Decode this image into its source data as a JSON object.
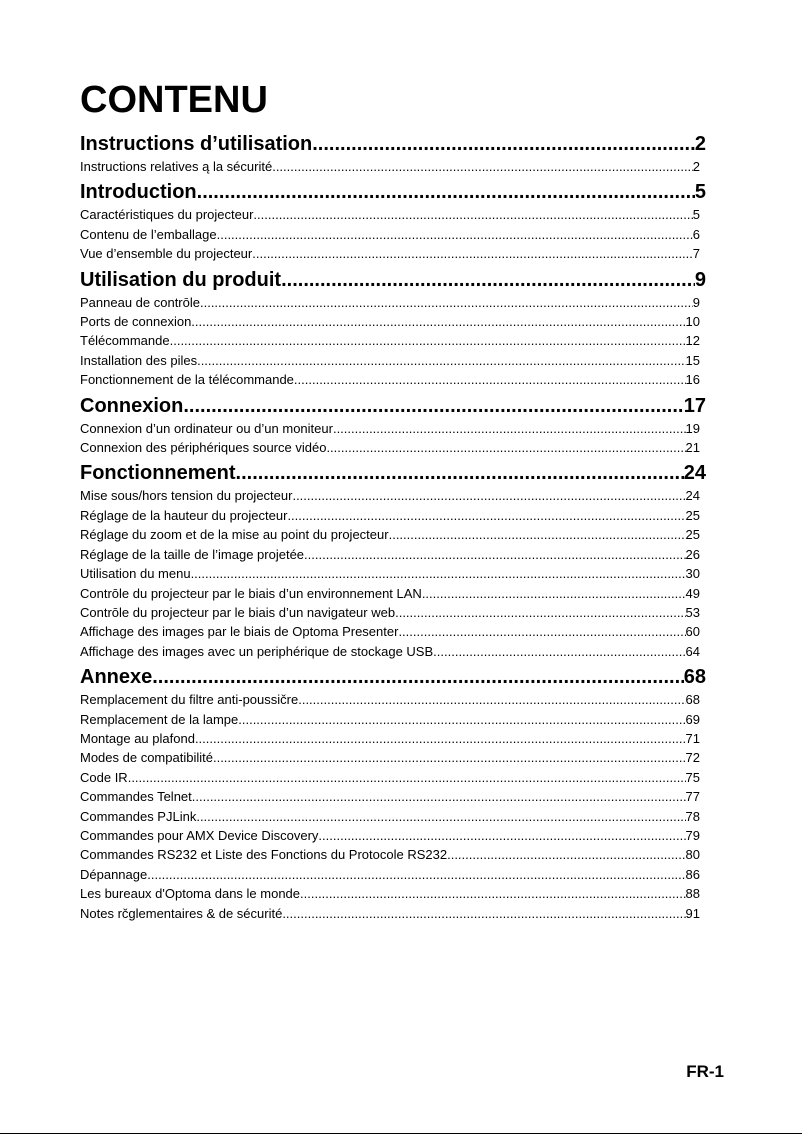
{
  "title": "CONTENU",
  "sections": [
    {
      "title": "Instructions d’utilisation",
      "page": "2",
      "entries": [
        {
          "label": "Instructions relatives ą la sécurité",
          "page": "2"
        }
      ]
    },
    {
      "title": "Introduction",
      "page": "5",
      "entries": [
        {
          "label": "Caractéristiques du projecteur",
          "page": "5"
        },
        {
          "label": "Contenu de l’emballage",
          "page": "6"
        },
        {
          "label": "Vue d’ensemble du projecteur",
          "page": "7"
        }
      ]
    },
    {
      "title": "Utilisation du produit",
      "page": "9",
      "entries": [
        {
          "label": "Panneau de contrōle",
          "page": "9"
        },
        {
          "label": "Ports de connexion",
          "page": "10"
        },
        {
          "label": "Télécommande",
          "page": "12"
        },
        {
          "label": "Installation des piles",
          "page": "15"
        },
        {
          "label": "Fonctionnement de la télécommande",
          "page": "16"
        }
      ]
    },
    {
      "title": "Connexion",
      "page": "17",
      "entries": [
        {
          "label": "Connexion d’un ordinateur ou d’un moniteur",
          "page": "19"
        },
        {
          "label": "Connexion des périphériques source vidéo",
          "page": "21"
        }
      ]
    },
    {
      "title": "Fonctionnement",
      "page": "24",
      "entries": [
        {
          "label": "Mise sous/hors tension du projecteur",
          "page": "24"
        },
        {
          "label": "Réglage de la hauteur du projecteur",
          "page": "25"
        },
        {
          "label": "Réglage du zoom et de la mise au point du projecteur",
          "page": "25"
        },
        {
          "label": "Réglage de la taille de l’image projetée",
          "page": "26"
        },
        {
          "label": "Utilisation du menu",
          "page": "30"
        },
        {
          "label": "Contrōle du projecteur par le biais d’un environnement LAN",
          "page": "49"
        },
        {
          "label": "Contrōle du projecteur par le biais d’un navigateur web",
          "page": "53"
        },
        {
          "label": "Affichage des images par le biais de Optoma Presenter",
          "page": "60"
        },
        {
          "label": "Affichage des images avec un periphérique de stockage USB",
          "page": "64"
        }
      ]
    },
    {
      "title": "Annexe",
      "page": "68",
      "entries": [
        {
          "label": "Remplacement du filtre anti-poussičre",
          "page": "68"
        },
        {
          "label": "Remplacement de la lampe",
          "page": "69"
        },
        {
          "label": "Montage au plafond",
          "page": "71"
        },
        {
          "label": "Modes de compatibilité",
          "page": "72"
        },
        {
          "label": "Code IR",
          "page": "75"
        },
        {
          "label": "Commandes Telnet",
          "page": "77"
        },
        {
          "label": "Commandes PJLink",
          "page": "78"
        },
        {
          "label": "Commandes pour AMX Device Discovery",
          "page": "79"
        },
        {
          "label": "Commandes RS232 et Liste des Fonctions du Protocole RS232",
          "page": "80"
        },
        {
          "label": "Dépannage",
          "page": "86"
        },
        {
          "label": "Les bureaux d'Optoma dans le monde",
          "page": "88"
        },
        {
          "label": "Notes rčglementaires & de sécurité",
          "page": "91"
        }
      ]
    }
  ],
  "footer": {
    "page_label": "FR-1"
  }
}
